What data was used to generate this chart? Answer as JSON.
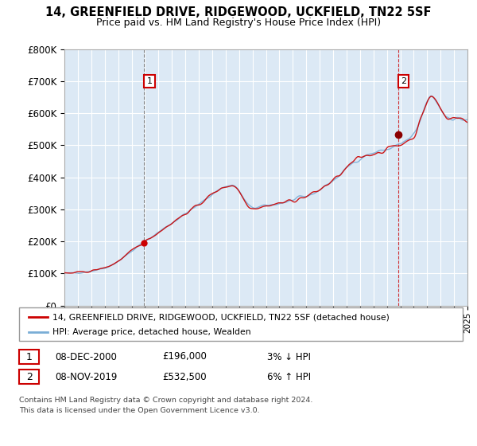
{
  "title": "14, GREENFIELD DRIVE, RIDGEWOOD, UCKFIELD, TN22 5SF",
  "subtitle": "Price paid vs. HM Land Registry's House Price Index (HPI)",
  "ylim": [
    0,
    800000
  ],
  "yticks": [
    0,
    100000,
    200000,
    300000,
    400000,
    500000,
    600000,
    700000,
    800000
  ],
  "ytick_labels": [
    "£0",
    "£100K",
    "£200K",
    "£300K",
    "£400K",
    "£500K",
    "£600K",
    "£700K",
    "£800K"
  ],
  "legend_line1": "14, GREENFIELD DRIVE, RIDGEWOOD, UCKFIELD, TN22 5SF (detached house)",
  "legend_line2": "HPI: Average price, detached house, Wealden",
  "sale1_label": "1",
  "sale1_date": "08-DEC-2000",
  "sale1_price": "£196,000",
  "sale1_hpi": "3% ↓ HPI",
  "sale2_label": "2",
  "sale2_date": "08-NOV-2019",
  "sale2_price": "£532,500",
  "sale2_hpi": "6% ↑ HPI",
  "footnote1": "Contains HM Land Registry data © Crown copyright and database right 2024.",
  "footnote2": "This data is licensed under the Open Government Licence v3.0.",
  "line_color_red": "#cc0000",
  "line_color_blue": "#7aaed6",
  "bg_chart": "#dce9f5",
  "bg_fig": "#ffffff",
  "grid_color": "#ffffff",
  "sale1_year": 2000.92,
  "sale2_year": 2019.83,
  "sale1_price_val": 196000,
  "sale2_price_val": 532500
}
